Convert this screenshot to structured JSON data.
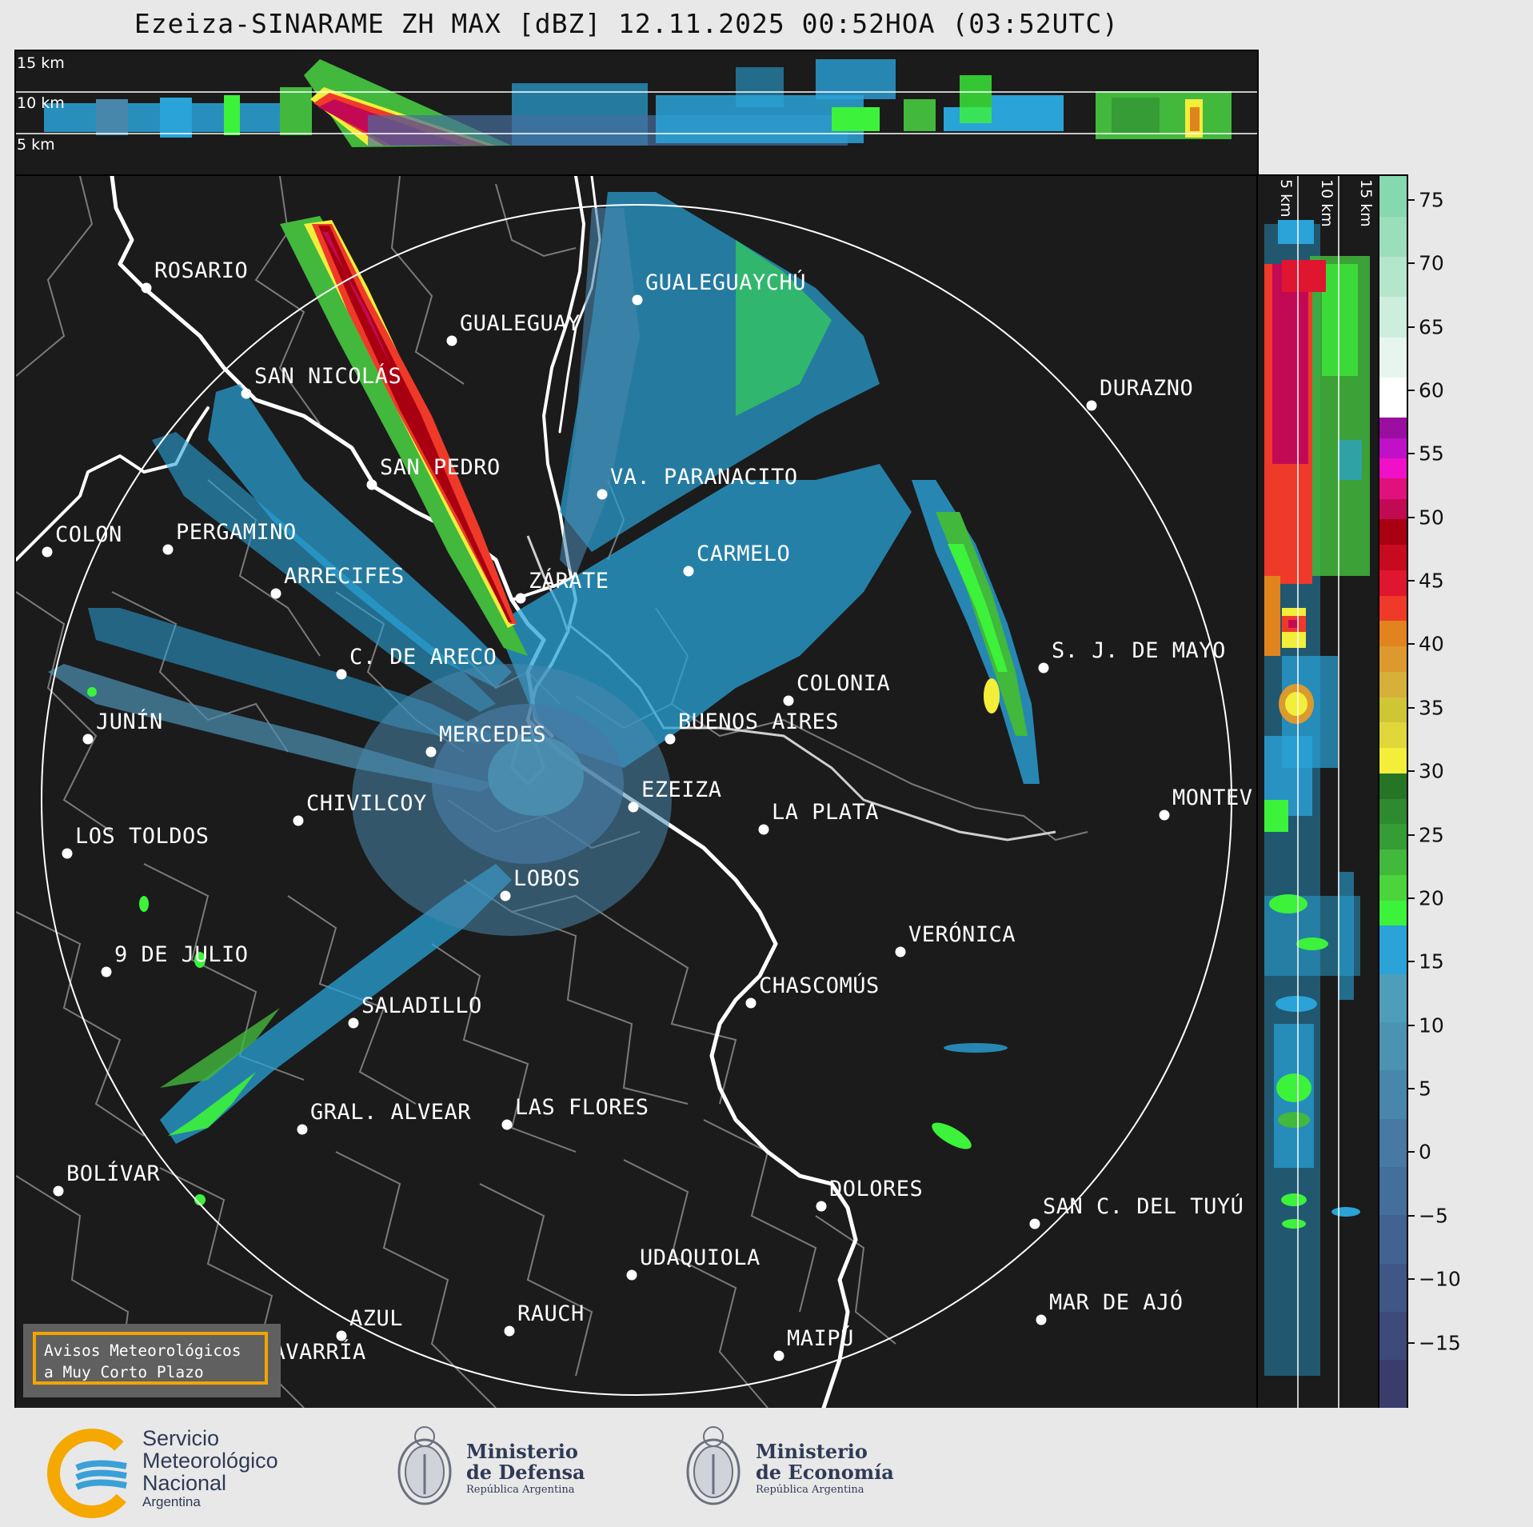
{
  "title": "Ezeiza-SINARAME ZH MAX [dBZ] 12.11.2025 00:52HOA (03:52UTC)",
  "top_panel": {
    "altitude_labels": [
      "15 km",
      "10 km",
      "5 km"
    ]
  },
  "side_panel": {
    "altitude_labels": [
      "5 km",
      "10 km",
      "15 km"
    ]
  },
  "colorbar": {
    "unit": "dBZ",
    "range": [
      -20,
      77
    ],
    "tick_labels": [
      "75",
      "70",
      "65",
      "60",
      "55",
      "50",
      "45",
      "40",
      "35",
      "30",
      "25",
      "20",
      "15",
      "10",
      "5",
      "0",
      "−5",
      "−10",
      "−15"
    ],
    "tick_values": [
      75,
      70,
      65,
      60,
      55,
      50,
      45,
      40,
      35,
      30,
      25,
      20,
      15,
      10,
      5,
      0,
      -5,
      -10,
      -15
    ],
    "bands": [
      {
        "from": -20,
        "to": 18,
        "colors": [
          "#3a3d6b",
          "#3d4a7a",
          "#405686",
          "#426292",
          "#446e9c",
          "#467aa4",
          "#4886ac",
          "#4b92b3",
          "#4e9ebb",
          "#2aa3d8"
        ]
      },
      {
        "from": 18,
        "to": 30,
        "colors": [
          "#3cf23a",
          "#4cd43c",
          "#42b83c",
          "#369c36",
          "#2e8a2e",
          "#267426"
        ]
      },
      {
        "from": 30,
        "to": 42,
        "colors": [
          "#f2ee3a",
          "#e0d83a",
          "#cfc636",
          "#d6b038",
          "#dc9a2e",
          "#e2841e"
        ]
      },
      {
        "from": 42,
        "to": 50,
        "colors": [
          "#ef3a2a",
          "#e01530",
          "#c80a1e",
          "#a80010"
        ]
      },
      {
        "from": 50,
        "to": 58,
        "colors": [
          "#c20a54",
          "#e0107c",
          "#ef10c8",
          "#c010c8",
          "#9b0fa0"
        ]
      },
      {
        "from": 58,
        "to": 77,
        "colors": [
          "#ffffff",
          "#e6f6ee",
          "#cdeedd",
          "#b4e6cc",
          "#9adebb",
          "#86d8ae"
        ]
      }
    ]
  },
  "cities": [
    {
      "name": "ROSARIO"
    },
    {
      "name": "GUALEGUAYCHÚ"
    },
    {
      "name": "GUALEGUAY"
    },
    {
      "name": "SAN NICOLÁS"
    },
    {
      "name": "DURAZNO"
    },
    {
      "name": "SAN PEDRO"
    },
    {
      "name": "VA. PARANACITO"
    },
    {
      "name": "COLON"
    },
    {
      "name": "PERGAMINO"
    },
    {
      "name": "CARMELO"
    },
    {
      "name": "ARRECIFES"
    },
    {
      "name": "ZÁRATE"
    },
    {
      "name": "C. DE ARECO"
    },
    {
      "name": "S. J. DE MAYO"
    },
    {
      "name": "COLONIA"
    },
    {
      "name": "JUNÍN"
    },
    {
      "name": "MERCEDES"
    },
    {
      "name": "BUENOS AIRES"
    },
    {
      "name": "EZEIZA"
    },
    {
      "name": "CHIVILCOY"
    },
    {
      "name": "LA PLATA"
    },
    {
      "name": "MONTEV"
    },
    {
      "name": "LOS TOLDOS"
    },
    {
      "name": "LOBOS"
    },
    {
      "name": "VERÓNICA"
    },
    {
      "name": "9 DE JULIO"
    },
    {
      "name": "CHASCOMÚS"
    },
    {
      "name": "SALADILLO"
    },
    {
      "name": "GRAL. ALVEAR"
    },
    {
      "name": "LAS FLORES"
    },
    {
      "name": "BOLÍVAR"
    },
    {
      "name": "DOLORES"
    },
    {
      "name": "SAN C. DEL TUYÚ"
    },
    {
      "name": "UDAQUIOLA"
    },
    {
      "name": "MAR DE AJÓ"
    },
    {
      "name": "AZUL"
    },
    {
      "name": "RAUCH"
    },
    {
      "name": "MAIPÚ"
    },
    {
      "name": "OLAVARRÍA"
    }
  ],
  "alert_box": {
    "line1": "Avisos Meteorológicos",
    "line2": "a Muy Corto Plazo"
  },
  "logos": {
    "smn": {
      "line1": "Servicio",
      "line2": "Meteorológico",
      "line3": "Nacional",
      "line4": "Argentina"
    },
    "defensa": {
      "line1": "Ministerio",
      "line2": "de Defensa",
      "line3": "República Argentina"
    },
    "economia": {
      "line1": "Ministerio",
      "line2": "de Economía",
      "line3": "República Argentina"
    }
  }
}
